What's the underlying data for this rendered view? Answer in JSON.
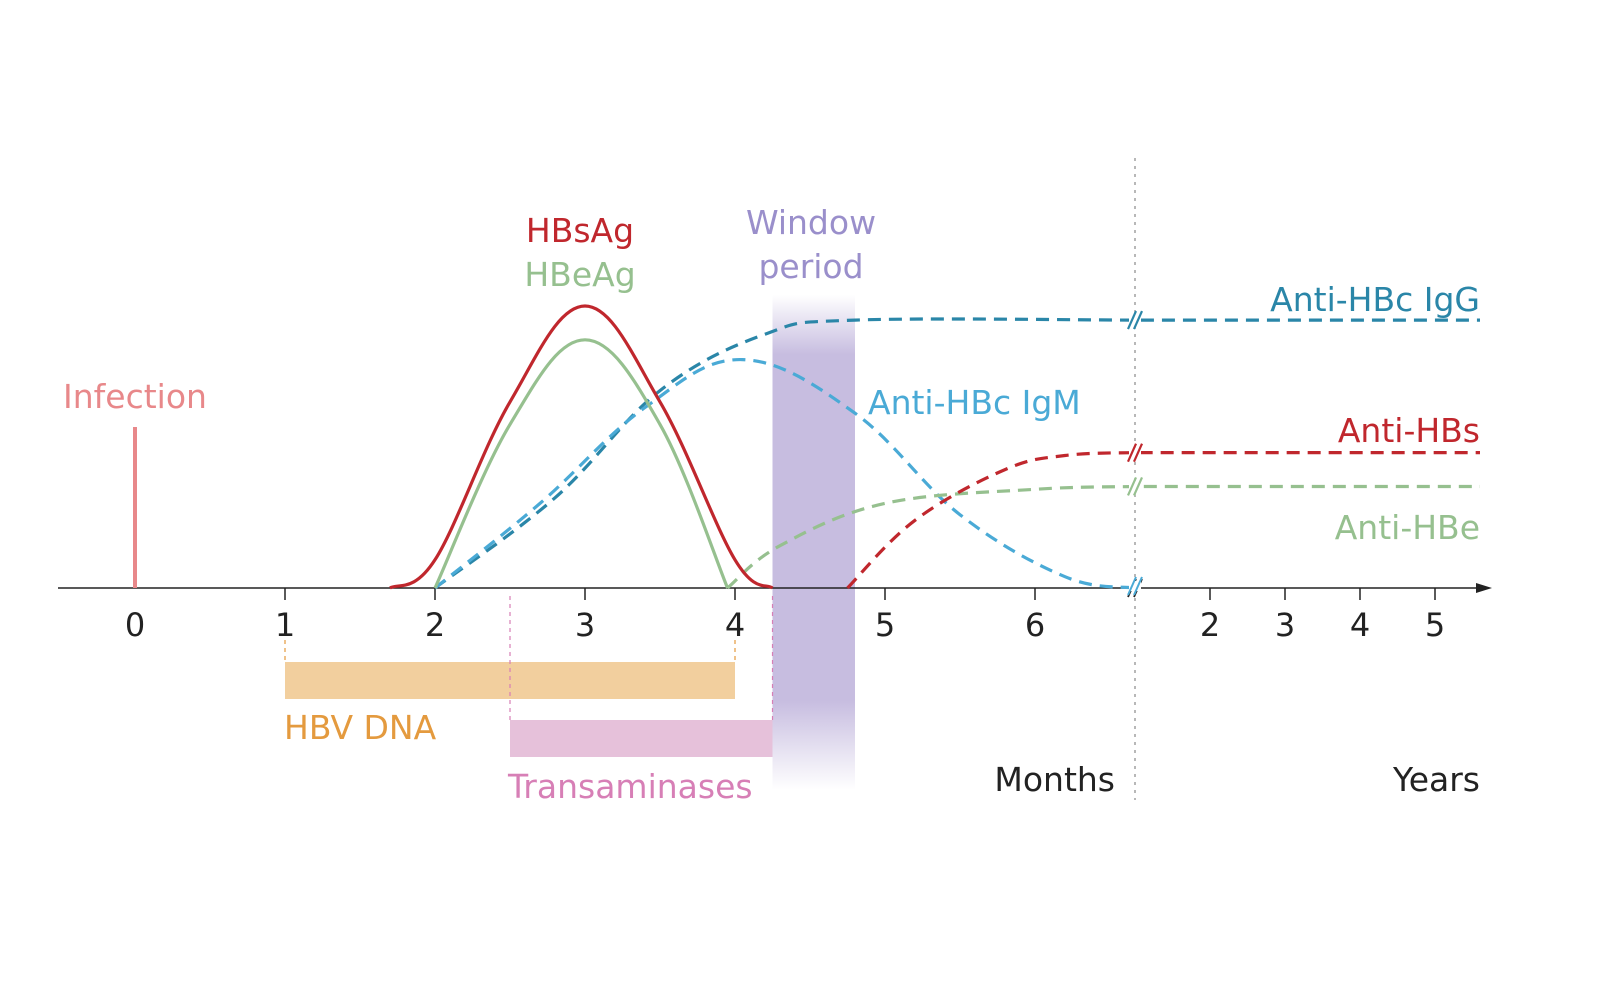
{
  "chart_data": {
    "type": "line",
    "title": "",
    "xlabel": "",
    "ylabel": "",
    "x_months_ticks": [
      "0",
      "1",
      "2",
      "3",
      "4",
      "5",
      "6"
    ],
    "x_years_ticks": [
      "2",
      "3",
      "4",
      "5"
    ],
    "axis_labels": {
      "months": "Months",
      "years": "Years"
    },
    "y_level_range": [
      0,
      1
    ],
    "grid": false,
    "legend": "none; series labelled directly on the chart",
    "colors": {
      "hbsag": "#c0272d",
      "hbeag": "#96c08f",
      "igg": "#2a86a8",
      "igm": "#4aaad6",
      "antihbs": "#c0272d",
      "antihbe": "#96c08f",
      "infection": "#e8888a",
      "dna": "#f2cf9e",
      "dna_text": "#e49a3e",
      "trans": "#e6c1da",
      "trans_text": "#d77fb6",
      "window": "#c7bde0",
      "window_text": "#9a8fcb"
    },
    "series": [
      {
        "key": "hbsag",
        "name": "HBsAg",
        "style": "solid",
        "x": [
          1.7,
          2.0,
          2.5,
          3.0,
          3.5,
          4.0,
          4.25
        ],
        "y": [
          0,
          0.1,
          0.66,
          1.0,
          0.66,
          0.1,
          0
        ]
      },
      {
        "key": "hbeag",
        "name": "HBeAg",
        "style": "solid",
        "x": [
          2.0,
          2.5,
          3.0,
          3.5,
          3.95
        ],
        "y": [
          0,
          0.58,
          0.88,
          0.58,
          0
        ]
      },
      {
        "key": "igm",
        "name": "Anti-HBc IgM",
        "style": "dashed",
        "x": [
          2.0,
          2.7,
          3.4,
          4.05,
          4.8,
          5.5,
          6.2,
          6.65
        ],
        "y": [
          0,
          0.3,
          0.64,
          0.81,
          0.62,
          0.26,
          0.04,
          0
        ]
      },
      {
        "key": "igg",
        "name": "Anti-HBc IgG",
        "style": "dashed",
        "x": [
          2.0,
          2.8,
          3.5,
          4.2,
          4.8,
          6.65,
          "5 years"
        ],
        "y": [
          0,
          0.32,
          0.7,
          0.9,
          0.95,
          0.95,
          0.95
        ]
      },
      {
        "key": "antihbe",
        "name": "Anti-HBe",
        "style": "dashed",
        "x": [
          3.95,
          4.3,
          5.0,
          6.0,
          6.65,
          "5 years"
        ],
        "y": [
          0,
          0.15,
          0.3,
          0.35,
          0.36,
          0.36
        ]
      },
      {
        "key": "antihbs",
        "name": "Anti-HBs",
        "style": "dashed",
        "x": [
          4.75,
          5.2,
          5.8,
          6.2,
          6.65,
          "5 years"
        ],
        "y": [
          0,
          0.24,
          0.42,
          0.47,
          0.48,
          0.48
        ]
      }
    ],
    "events": [
      {
        "key": "infection",
        "name": "Infection",
        "x": 0
      }
    ],
    "bands": [
      {
        "key": "dna",
        "name": "HBV DNA",
        "x_start": 1,
        "x_end": 4
      },
      {
        "key": "trans",
        "name": "Transaminases",
        "x_start": 2.5,
        "x_end": 4.25
      }
    ],
    "window_period": {
      "line1": "Window",
      "line2": "period",
      "x_start": 4.25,
      "x_end": 4.8
    }
  }
}
